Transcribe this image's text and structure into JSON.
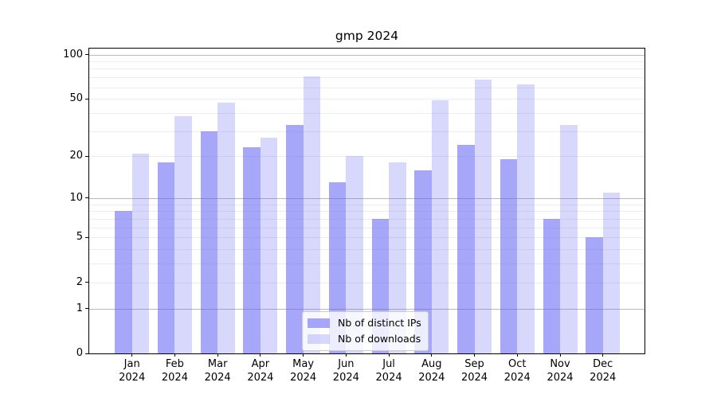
{
  "title": "gmp 2024",
  "chart_data": {
    "type": "bar",
    "title": "gmp 2024",
    "scale": "log1p",
    "grid": true,
    "legend_position": "lower center",
    "categories": [
      "Jan",
      "Feb",
      "Mar",
      "Apr",
      "May",
      "Jun",
      "Jul",
      "Aug",
      "Sep",
      "Oct",
      "Nov",
      "Dec"
    ],
    "x_year_label": "2024",
    "series": [
      {
        "name": "Nb of distinct IPs",
        "color": "#6464f5",
        "alpha": 0.57,
        "values": [
          8,
          18,
          30,
          23,
          33,
          13,
          7,
          16,
          24,
          19,
          7,
          5
        ]
      },
      {
        "name": "Nb of downloads",
        "color": "#6464f5",
        "alpha": 0.25,
        "values": [
          21,
          38,
          47,
          27,
          71,
          20,
          18,
          49,
          68,
          63,
          33,
          11
        ]
      }
    ],
    "yticks": [
      0,
      1,
      2,
      5,
      10,
      20,
      50,
      100
    ],
    "major_gridlines": [
      1,
      10,
      100
    ],
    "minor_gridlines": [
      2,
      3,
      4,
      5,
      6,
      7,
      8,
      9,
      20,
      30,
      40,
      50,
      60,
      70,
      80,
      90
    ],
    "ylim": [
      0,
      113
    ],
    "colors": {
      "axis": "#000000",
      "major_grid": "#b8b8b8",
      "minor_grid": "#ececec",
      "background": "#ffffff"
    }
  }
}
